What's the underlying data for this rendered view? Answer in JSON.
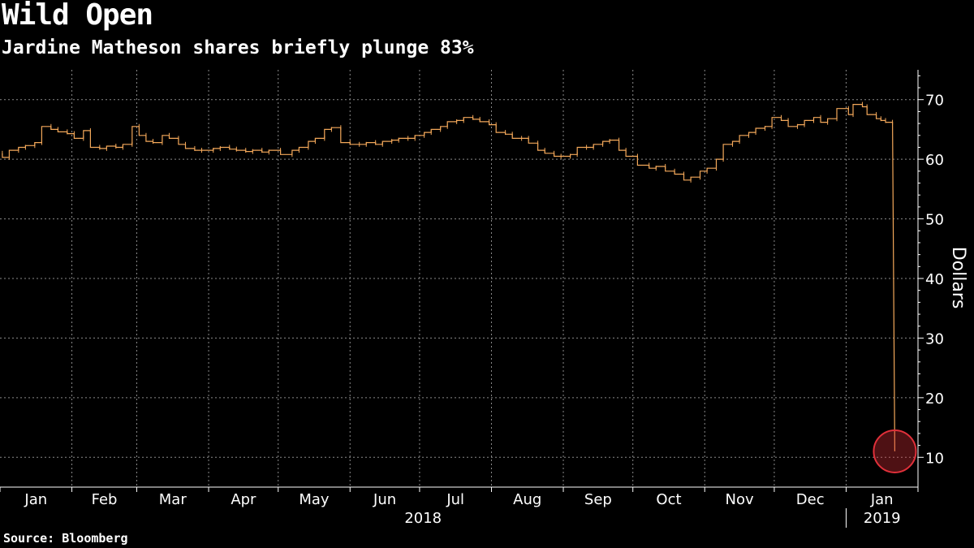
{
  "title": "Wild Open",
  "subtitle": "Jardine Matheson shares briefly plunge 83%",
  "source": "Source: Bloomberg",
  "colors": {
    "background": "#000000",
    "series": "#f3a85a",
    "grid": "#8a8a8a",
    "highlight": "#e0303a"
  },
  "chart_data": {
    "type": "line",
    "ylabel": "Dollars",
    "ylim": [
      5,
      75
    ],
    "yticks": [
      10,
      20,
      30,
      40,
      50,
      60,
      70
    ],
    "grid": true,
    "x_month_labels": [
      "Jan",
      "Feb",
      "Mar",
      "Apr",
      "May",
      "Jun",
      "Jul",
      "Aug",
      "Sep",
      "Oct",
      "Nov",
      "Dec",
      "Jan"
    ],
    "x_year_labels": [
      "2018",
      "2019"
    ],
    "series": [
      {
        "points": [
          [
            "2018-01-02",
            61
          ],
          [
            "2018-01-05",
            60.3
          ],
          [
            "2018-01-09",
            61.5
          ],
          [
            "2018-01-12",
            62
          ],
          [
            "2018-01-16",
            62.3
          ],
          [
            "2018-01-19",
            62.8
          ],
          [
            "2018-01-23",
            65.5
          ],
          [
            "2018-01-26",
            65
          ],
          [
            "2018-01-30",
            64.6
          ],
          [
            "2018-02-02",
            64.3
          ],
          [
            "2018-02-06",
            63.5
          ],
          [
            "2018-02-09",
            64.8
          ],
          [
            "2018-02-13",
            62
          ],
          [
            "2018-02-16",
            61.8
          ],
          [
            "2018-02-20",
            62.2
          ],
          [
            "2018-02-23",
            62
          ],
          [
            "2018-02-27",
            62.5
          ],
          [
            "2018-03-02",
            65.5
          ],
          [
            "2018-03-05",
            64
          ],
          [
            "2018-03-08",
            63
          ],
          [
            "2018-03-12",
            62.8
          ],
          [
            "2018-03-15",
            64
          ],
          [
            "2018-03-19",
            63.5
          ],
          [
            "2018-03-22",
            62.5
          ],
          [
            "2018-03-26",
            61.8
          ],
          [
            "2018-03-29",
            61.5
          ],
          [
            "2018-04-03",
            61.5
          ],
          [
            "2018-04-06",
            61.8
          ],
          [
            "2018-04-10",
            62
          ],
          [
            "2018-04-13",
            61.7
          ],
          [
            "2018-04-17",
            61.5
          ],
          [
            "2018-04-20",
            61.3
          ],
          [
            "2018-04-24",
            61.5
          ],
          [
            "2018-04-27",
            61.2
          ],
          [
            "2018-05-02",
            61.5
          ],
          [
            "2018-05-07",
            60.8
          ],
          [
            "2018-05-10",
            61.5
          ],
          [
            "2018-05-14",
            62
          ],
          [
            "2018-05-17",
            63
          ],
          [
            "2018-05-21",
            63.5
          ],
          [
            "2018-05-24",
            65
          ],
          [
            "2018-05-28",
            65.3
          ],
          [
            "2018-06-01",
            62.8
          ],
          [
            "2018-06-05",
            62.5
          ],
          [
            "2018-06-08",
            62.5
          ],
          [
            "2018-06-12",
            62.8
          ],
          [
            "2018-06-15",
            62.5
          ],
          [
            "2018-06-19",
            63
          ],
          [
            "2018-06-22",
            63.2
          ],
          [
            "2018-06-26",
            63.5
          ],
          [
            "2018-06-29",
            63.5
          ],
          [
            "2018-07-03",
            64
          ],
          [
            "2018-07-06",
            64.5
          ],
          [
            "2018-07-10",
            65
          ],
          [
            "2018-07-13",
            65.5
          ],
          [
            "2018-07-17",
            66.3
          ],
          [
            "2018-07-20",
            66.5
          ],
          [
            "2018-07-24",
            67
          ],
          [
            "2018-07-27",
            66.7
          ],
          [
            "2018-07-31",
            66.3
          ],
          [
            "2018-08-03",
            65.8
          ],
          [
            "2018-08-07",
            64.5
          ],
          [
            "2018-08-10",
            64.2
          ],
          [
            "2018-08-14",
            63.5
          ],
          [
            "2018-08-17",
            63.5
          ],
          [
            "2018-08-21",
            62.7
          ],
          [
            "2018-08-24",
            61.5
          ],
          [
            "2018-08-28",
            61
          ],
          [
            "2018-08-31",
            60.5
          ],
          [
            "2018-09-04",
            60.5
          ],
          [
            "2018-09-07",
            60.8
          ],
          [
            "2018-09-11",
            62
          ],
          [
            "2018-09-14",
            62
          ],
          [
            "2018-09-18",
            62.5
          ],
          [
            "2018-09-21",
            63
          ],
          [
            "2018-09-25",
            63.2
          ],
          [
            "2018-09-28",
            61.5
          ],
          [
            "2018-10-03",
            60.5
          ],
          [
            "2018-10-08",
            59
          ],
          [
            "2018-10-11",
            58.5
          ],
          [
            "2018-10-15",
            58.8
          ],
          [
            "2018-10-19",
            58
          ],
          [
            "2018-10-23",
            57.5
          ],
          [
            "2018-10-26",
            56.5
          ],
          [
            "2018-10-30",
            57
          ],
          [
            "2018-11-02",
            58
          ],
          [
            "2018-11-06",
            58.5
          ],
          [
            "2018-11-09",
            60
          ],
          [
            "2018-11-13",
            62.5
          ],
          [
            "2018-11-16",
            63
          ],
          [
            "2018-11-20",
            64
          ],
          [
            "2018-11-23",
            64.5
          ],
          [
            "2018-11-27",
            65.2
          ],
          [
            "2018-11-30",
            65.5
          ],
          [
            "2018-12-04",
            67
          ],
          [
            "2018-12-07",
            66.5
          ],
          [
            "2018-12-11",
            65.5
          ],
          [
            "2018-12-14",
            65.8
          ],
          [
            "2018-12-18",
            66.5
          ],
          [
            "2018-12-21",
            67
          ],
          [
            "2018-12-24",
            66.2
          ],
          [
            "2018-12-28",
            66.8
          ],
          [
            "2019-01-02",
            68.5
          ],
          [
            "2019-01-04",
            67.5
          ],
          [
            "2019-01-08",
            69.2
          ],
          [
            "2019-01-10",
            68.8
          ],
          [
            "2019-01-14",
            67.5
          ],
          [
            "2019-01-16",
            66.8
          ],
          [
            "2019-01-18",
            66.5
          ],
          [
            "2019-01-21",
            66.2
          ],
          [
            "2019-01-22",
            11
          ]
        ]
      }
    ],
    "highlight": {
      "date": "2019-01-22",
      "value": 11
    }
  }
}
